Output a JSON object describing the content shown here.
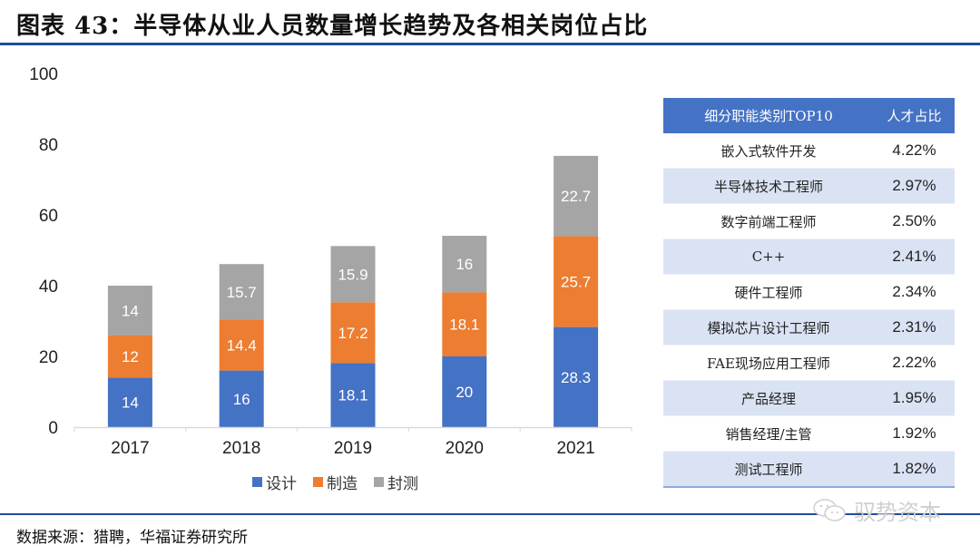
{
  "header": {
    "title": "图表 43：半导体从业人员数量增长趋势及各相关岗位占比"
  },
  "chart_data": {
    "type": "bar",
    "stacked": true,
    "title": "",
    "xlabel": "",
    "ylabel": "",
    "categories": [
      "2017",
      "2018",
      "2019",
      "2020",
      "2021"
    ],
    "series": [
      {
        "name": "设计",
        "color": "#4472c4",
        "values": [
          14,
          16,
          18.1,
          20,
          28.3
        ]
      },
      {
        "name": "制造",
        "color": "#ed7d31",
        "values": [
          12,
          14.4,
          17.2,
          18.1,
          25.7
        ]
      },
      {
        "name": "封测",
        "color": "#a5a5a5",
        "values": [
          14,
          15.7,
          15.9,
          16,
          22.7
        ]
      }
    ],
    "ylim": [
      0,
      100
    ],
    "yticks": [
      0,
      20,
      40,
      60,
      80,
      100
    ],
    "grid": false,
    "legend": "bottom",
    "data_labels": true
  },
  "table": {
    "headers": [
      "细分职能类别TOP10",
      "人才占比"
    ],
    "rows": [
      {
        "role": "嵌入式软件开发",
        "share": "4.22%"
      },
      {
        "role": "半导体技术工程师",
        "share": "2.97%"
      },
      {
        "role": "数字前端工程师",
        "share": "2.50%"
      },
      {
        "role": "C++",
        "share": "2.41%"
      },
      {
        "role": "硬件工程师",
        "share": "2.34%"
      },
      {
        "role": "模拟芯片设计工程师",
        "share": "2.31%"
      },
      {
        "role": "FAE现场应用工程师",
        "share": "2.22%"
      },
      {
        "role": "产品经理",
        "share": "1.95%"
      },
      {
        "role": "销售经理/主管",
        "share": "1.92%"
      },
      {
        "role": "测试工程师",
        "share": "1.82%"
      }
    ]
  },
  "footer": {
    "source": "数据来源：猎聘，华福证券研究所",
    "watermark": "驭势资本",
    "watermark_icon": "wechat-icon"
  }
}
